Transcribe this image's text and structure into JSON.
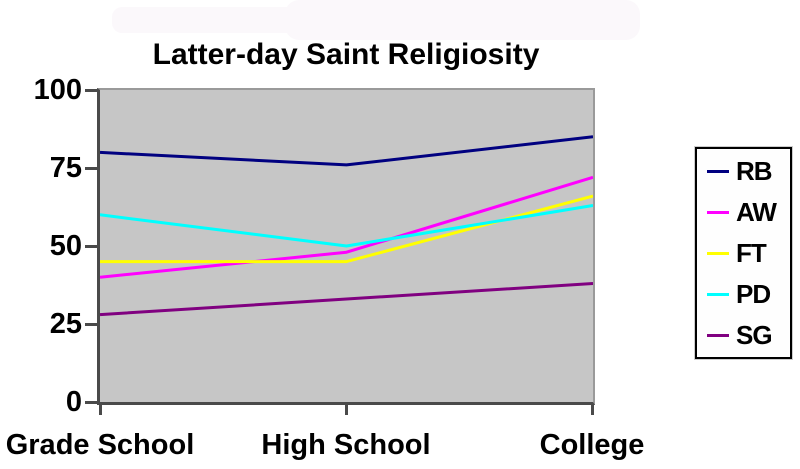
{
  "title": "Latter-day Saint Religiosity",
  "colors": {
    "page_background": "#ffffff",
    "plot_background": "#c6c6c6",
    "axis": "#4a4a4a",
    "legend_border": "#000000",
    "text": "#000000"
  },
  "chart_data": {
    "type": "line",
    "title": "Latter-day Saint Religiosity",
    "categories": [
      "Grade School",
      "High School",
      "College"
    ],
    "series": [
      {
        "name": "RB",
        "color": "#000080",
        "values": [
          80,
          76,
          85
        ]
      },
      {
        "name": "AW",
        "color": "#ff00ff",
        "values": [
          40,
          48,
          72
        ]
      },
      {
        "name": "FT",
        "color": "#ffff00",
        "values": [
          45,
          45,
          66
        ]
      },
      {
        "name": "PD",
        "color": "#00ffff",
        "values": [
          60,
          50,
          63
        ]
      },
      {
        "name": "SG",
        "color": "#800080",
        "values": [
          28,
          33,
          38
        ]
      }
    ],
    "xlabel": "",
    "ylabel": "",
    "ylim": [
      0,
      100
    ],
    "y_ticks": [
      0,
      25,
      50,
      75,
      100
    ],
    "grid": false,
    "legend_position": "right"
  }
}
